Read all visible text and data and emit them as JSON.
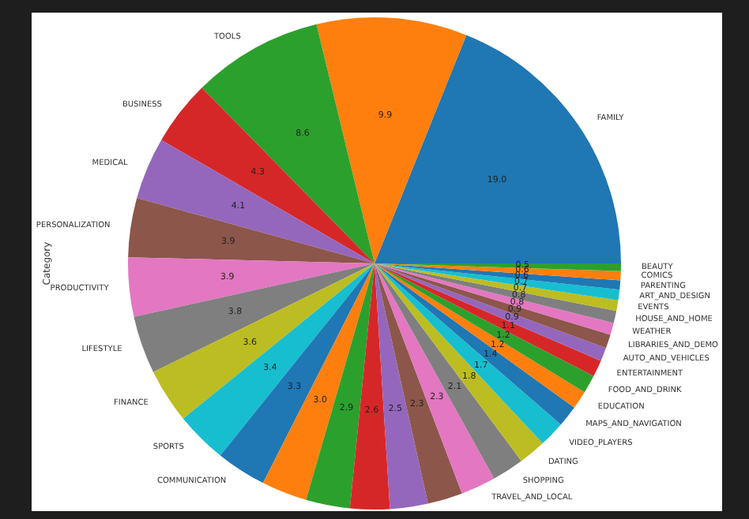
{
  "chart_data": {
    "type": "pie",
    "ylabel": "Category",
    "categories": [
      "FAMILY",
      null,
      "TOOLS",
      "BUSINESS",
      "MEDICAL",
      "PERSONALIZATION",
      "PRODUCTIVITY",
      "LIFESTYLE",
      "FINANCE",
      "SPORTS",
      "COMMUNICATION",
      null,
      null,
      null,
      null,
      null,
      "TRAVEL_AND_LOCAL",
      "SHOPPING",
      "DATING",
      "VIDEO_PLAYERS",
      "MAPS_AND_NAVIGATION",
      "EDUCATION",
      "FOOD_AND_DRINK",
      "ENTERTAINMENT",
      "AUTO_AND_VEHICLES",
      "LIBRARIES_AND_DEMO",
      "WEATHER",
      "HOUSE_AND_HOME",
      "EVENTS",
      "ART_AND_DESIGN",
      "PARENTING",
      "COMICS",
      "BEAUTY"
    ],
    "values": [
      19.0,
      9.9,
      8.6,
      4.3,
      4.1,
      3.9,
      3.9,
      3.8,
      3.6,
      3.4,
      3.3,
      3.0,
      2.9,
      2.6,
      2.5,
      2.3,
      2.3,
      2.1,
      1.8,
      1.7,
      1.4,
      1.2,
      1.2,
      1.1,
      0.9,
      0.9,
      0.8,
      0.8,
      0.7,
      0.7,
      0.6,
      0.6,
      0.5
    ],
    "value_labels": [
      "19.0",
      "9.9",
      "8.6",
      "4.3",
      "4.1",
      "3.9",
      "3.9",
      "3.8",
      "3.6",
      "3.4",
      "3.3",
      "3.0",
      "2.9",
      "2.6",
      "2.5",
      "2.3",
      "2.3",
      "2.1",
      "1.8",
      "1.7",
      "1.4",
      "1.2",
      "1.2",
      "1.1",
      "0.9",
      "0.9",
      "0.8",
      "0.8",
      "0.7",
      "0.7",
      "0.6",
      "0.6",
      "0.5"
    ],
    "colors": [
      "#1f77b4",
      "#ff7f0e",
      "#2ca02c",
      "#d62728",
      "#9467bd",
      "#8c564b",
      "#e377c2",
      "#7f7f7f",
      "#bcbd22",
      "#17becf",
      "#1f77b4",
      "#ff7f0e",
      "#2ca02c",
      "#d62728",
      "#9467bd",
      "#8c564b",
      "#e377c2",
      "#7f7f7f",
      "#bcbd22",
      "#17becf",
      "#1f77b4",
      "#ff7f0e",
      "#2ca02c",
      "#d62728",
      "#9467bd",
      "#8c564b",
      "#e377c2",
      "#7f7f7f",
      "#bcbd22",
      "#17becf",
      "#1f77b4",
      "#ff7f0e",
      "#2ca02c"
    ]
  }
}
